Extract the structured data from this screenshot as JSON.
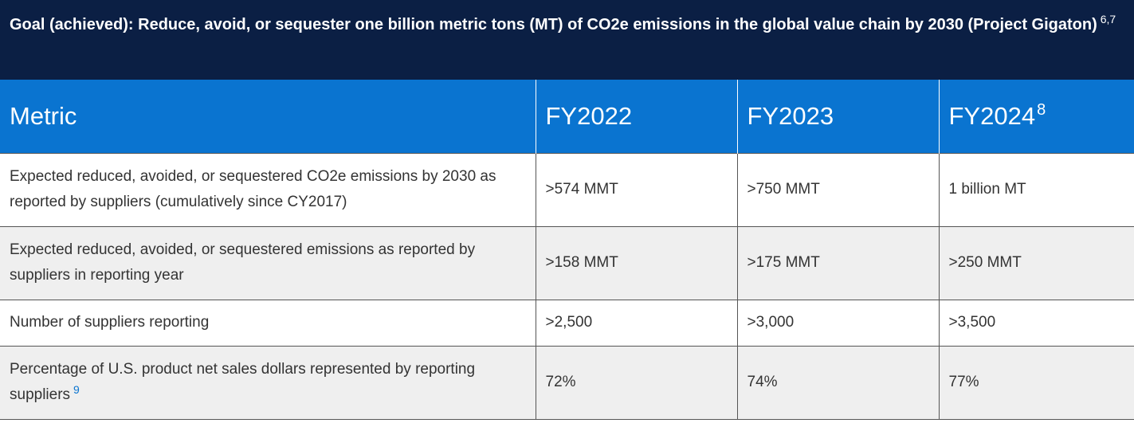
{
  "goal": {
    "title": "Goal (achieved): Reduce, avoid, or sequester one billion metric tons (MT) of CO2e emissions in the global value chain by 2030 (Project Gigaton)",
    "footnote": "6,7"
  },
  "table": {
    "headers": {
      "metric": "Metric",
      "fy2022": "FY2022",
      "fy2023": "FY2023",
      "fy2024": "FY2024",
      "fy2024_footnote": "8"
    },
    "rows": [
      {
        "metric": "Expected reduced, avoided, or sequestered CO2e emissions by 2030 as reported by suppliers (cumulatively since CY2017)",
        "fy2022": ">574 MMT",
        "fy2023": ">750 MMT",
        "fy2024": "1 billion MT"
      },
      {
        "metric": "Expected reduced, avoided, or sequestered emissions as reported by suppliers in reporting year",
        "fy2022": ">158 MMT",
        "fy2023": ">175 MMT",
        "fy2024": ">250 MMT"
      },
      {
        "metric": "Number of suppliers reporting",
        "fy2022": ">2,500",
        "fy2023": ">3,000",
        "fy2024": ">3,500"
      },
      {
        "metric": "Percentage of U.S. product net sales dollars represented by reporting suppliers",
        "metric_footnote": "9",
        "fy2022": "72%",
        "fy2023": "74%",
        "fy2024": "77%"
      }
    ]
  }
}
